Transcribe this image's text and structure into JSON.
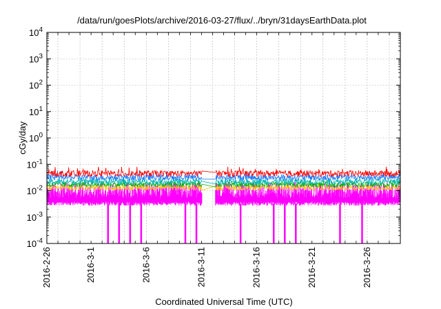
{
  "chart_data": {
    "type": "line",
    "title": "/data/run/goesPlots/archive/2016-03-27/flux/../bryn/31daysEarthData.plot",
    "xlabel": "Coordinated Universal Time (UTC)",
    "ylabel": "cGy/day",
    "yscale": "log",
    "ylim": [
      0.0001,
      10000
    ],
    "xlim": [
      "2016-02-26",
      "2016-03-29"
    ],
    "grid": true,
    "x_ticks": [
      "2016-2-26",
      "2016-3-1",
      "2016-3-6",
      "2016-3-11",
      "2016-3-16",
      "2016-3-21",
      "2016-3-26"
    ],
    "y_ticks": [
      {
        "base": "10",
        "exp": "-4",
        "value": 0.0001
      },
      {
        "base": "10",
        "exp": "-3",
        "value": 0.001
      },
      {
        "base": "10",
        "exp": "-2",
        "value": 0.01
      },
      {
        "base": "10",
        "exp": "-1",
        "value": 0.1
      },
      {
        "base": "10",
        "exp": "0",
        "value": 1
      },
      {
        "base": "10",
        "exp": "1",
        "value": 10
      },
      {
        "base": "10",
        "exp": "2",
        "value": 100
      },
      {
        "base": "10",
        "exp": "3",
        "value": 1000
      },
      {
        "base": "10",
        "exp": "4",
        "value": 10000
      }
    ],
    "data_gap": [
      "2016-03-11",
      "2016-03-12"
    ],
    "series": [
      {
        "color": "#ff0000",
        "typical": 0.045,
        "spread": 0.12,
        "spike_to": 0.065
      },
      {
        "color": "#1e78ff",
        "typical": 0.032,
        "spread": 0.12,
        "spike_to": 0.05
      },
      {
        "color": "#00b4b4",
        "typical": 0.022,
        "spread": 0.12,
        "spike_to": 0.03
      },
      {
        "color": "#00b400",
        "typical": 0.017,
        "spread": 0.1,
        "spike_to": 0.022
      },
      {
        "color": "#ffc800",
        "typical": 0.013,
        "spread": 0.1,
        "spike_to": 0.016
      },
      {
        "color": "#ff00ff",
        "typical": 0.007,
        "spread": 0.2,
        "spike_to": 0.02,
        "low": 0.0032
      }
    ],
    "dropouts": [
      "2016-03-02",
      "2016-03-03",
      "2016-03-04",
      "2016-03-05",
      "2016-03-09",
      "2016-03-10",
      "2016-03-14",
      "2016-03-17",
      "2016-03-18",
      "2016-03-19",
      "2016-03-23",
      "2016-03-25"
    ]
  }
}
